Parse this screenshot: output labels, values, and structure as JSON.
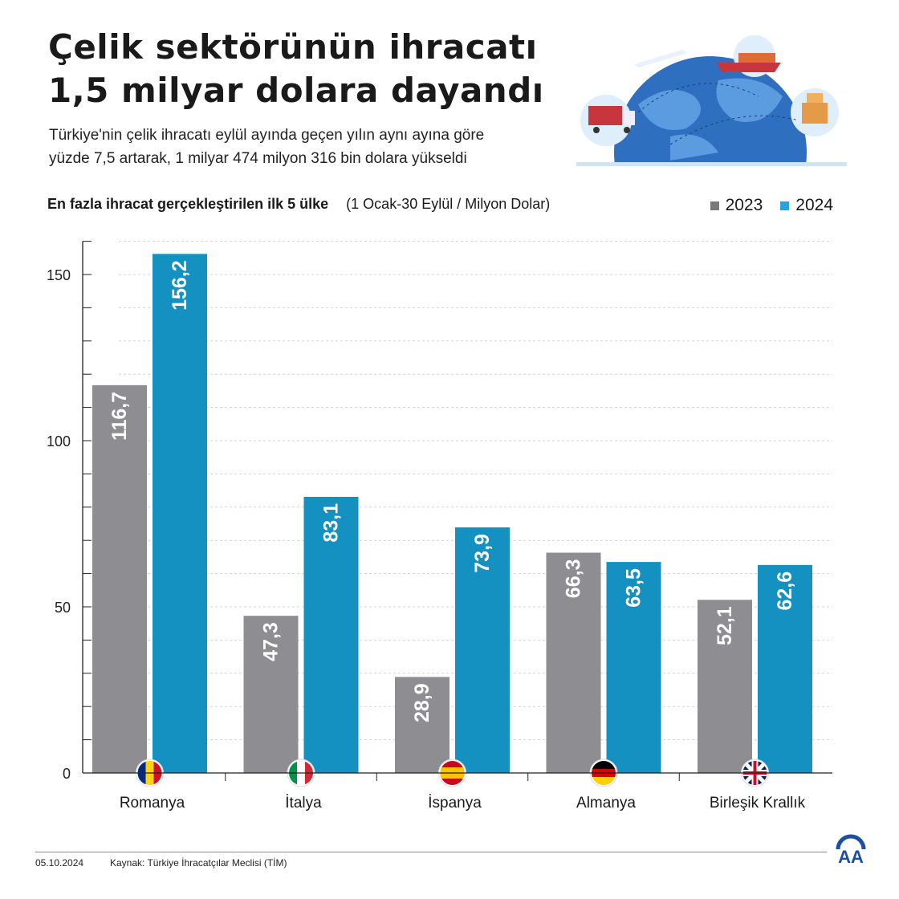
{
  "header": {
    "title_line1": "Çelik sektörünün ihracatı",
    "title_line2": "1,5 milyar dolara dayandı",
    "subtitle_line1": "Türkiye'nin çelik ihracatı eylül ayında geçen yılın aynı ayına göre",
    "subtitle_line2": "yüzde 7,5 artarak, 1 milyar 474 milyon 316 bin dolara yükseldi"
  },
  "chart_data": {
    "type": "bar",
    "title": "En fazla ihracat gerçekleştirilen ilk 5 ülke",
    "unit_note": "(1 Ocak-30 Eylül / Milyon Dolar)",
    "categories": [
      "Romanya",
      "İtalya",
      "İspanya",
      "Almanya",
      "Birleşik Krallık"
    ],
    "series": [
      {
        "name": "2023",
        "color": "#8e8e92",
        "values": [
          116.7,
          47.3,
          28.9,
          66.3,
          52.1
        ],
        "labels": [
          "116,7",
          "47,3",
          "28,9",
          "66,3",
          "52,1"
        ]
      },
      {
        "name": "2024",
        "color": "#1591c1",
        "values": [
          156.2,
          83.1,
          73.9,
          63.5,
          62.6
        ],
        "labels": [
          "156,2",
          "83,1",
          "73,9",
          "63,5",
          "62,6"
        ]
      }
    ],
    "ylim": [
      0,
      160
    ],
    "yticks": [
      0,
      50,
      100,
      150
    ],
    "grid": true,
    "legend_colors": [
      "#7a7a7a",
      "#29a3dc"
    ],
    "legend": "top-right"
  },
  "footer": {
    "date": "05.10.2024",
    "source": "Kaynak: Türkiye İhracatçılar Meclisi (TİM)",
    "logo": "AA"
  }
}
